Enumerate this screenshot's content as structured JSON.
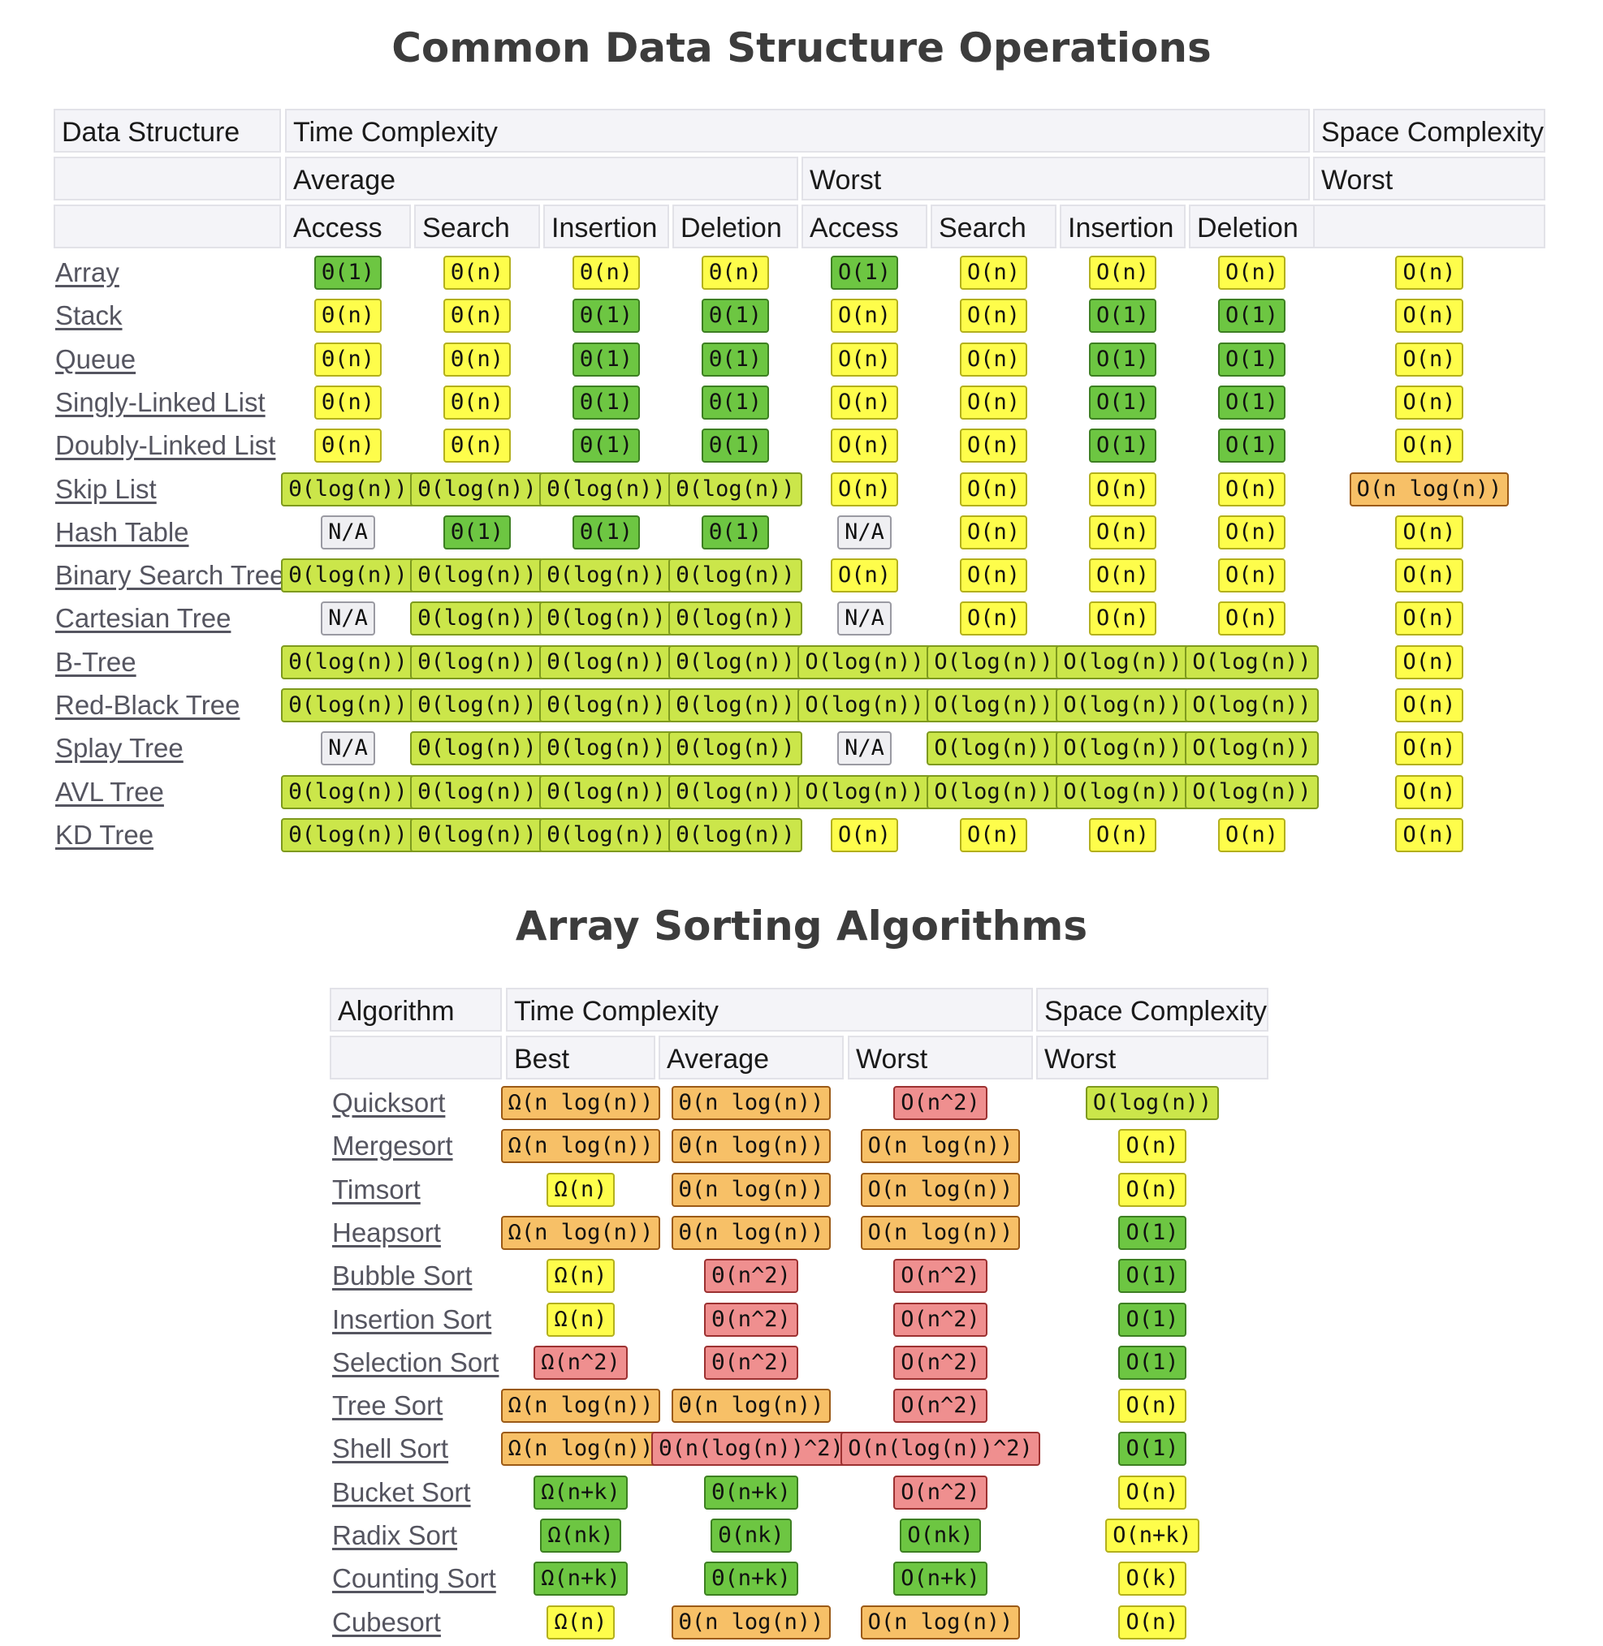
{
  "colors": {
    "green": {
      "bg": "#6dc642",
      "border": "#3d7f22"
    },
    "lightgreen": {
      "bg": "#cbe64a",
      "border": "#7e9a1e"
    },
    "yellow": {
      "bg": "#fefd4b",
      "border": "#b3b01c"
    },
    "orange": {
      "bg": "#f7c067",
      "border": "#9b5a16"
    },
    "red": {
      "bg": "#ef8f8f",
      "border": "#9c3131"
    },
    "gray": {
      "bg": "#efeff2",
      "border": "#9a9aa2"
    }
  },
  "ds_section": {
    "title": "Common Data Structure Operations",
    "header_row1": [
      "Data Structure",
      "Time Complexity",
      "Space Complexity"
    ],
    "header_row2": [
      "",
      "Average",
      "Worst",
      "Worst"
    ],
    "header_row3": [
      "",
      "Access",
      "Search",
      "Insertion",
      "Deletion",
      "Access",
      "Search",
      "Insertion",
      "Deletion",
      ""
    ],
    "rows": [
      {
        "name": "Array",
        "cells": [
          [
            "Θ(1)",
            "green"
          ],
          [
            "Θ(n)",
            "yellow"
          ],
          [
            "Θ(n)",
            "yellow"
          ],
          [
            "Θ(n)",
            "yellow"
          ],
          [
            "O(1)",
            "green"
          ],
          [
            "O(n)",
            "yellow"
          ],
          [
            "O(n)",
            "yellow"
          ],
          [
            "O(n)",
            "yellow"
          ],
          [
            "O(n)",
            "yellow"
          ]
        ]
      },
      {
        "name": "Stack",
        "cells": [
          [
            "Θ(n)",
            "yellow"
          ],
          [
            "Θ(n)",
            "yellow"
          ],
          [
            "Θ(1)",
            "green"
          ],
          [
            "Θ(1)",
            "green"
          ],
          [
            "O(n)",
            "yellow"
          ],
          [
            "O(n)",
            "yellow"
          ],
          [
            "O(1)",
            "green"
          ],
          [
            "O(1)",
            "green"
          ],
          [
            "O(n)",
            "yellow"
          ]
        ]
      },
      {
        "name": "Queue",
        "cells": [
          [
            "Θ(n)",
            "yellow"
          ],
          [
            "Θ(n)",
            "yellow"
          ],
          [
            "Θ(1)",
            "green"
          ],
          [
            "Θ(1)",
            "green"
          ],
          [
            "O(n)",
            "yellow"
          ],
          [
            "O(n)",
            "yellow"
          ],
          [
            "O(1)",
            "green"
          ],
          [
            "O(1)",
            "green"
          ],
          [
            "O(n)",
            "yellow"
          ]
        ]
      },
      {
        "name": "Singly-Linked List",
        "cells": [
          [
            "Θ(n)",
            "yellow"
          ],
          [
            "Θ(n)",
            "yellow"
          ],
          [
            "Θ(1)",
            "green"
          ],
          [
            "Θ(1)",
            "green"
          ],
          [
            "O(n)",
            "yellow"
          ],
          [
            "O(n)",
            "yellow"
          ],
          [
            "O(1)",
            "green"
          ],
          [
            "O(1)",
            "green"
          ],
          [
            "O(n)",
            "yellow"
          ]
        ]
      },
      {
        "name": "Doubly-Linked List",
        "cells": [
          [
            "Θ(n)",
            "yellow"
          ],
          [
            "Θ(n)",
            "yellow"
          ],
          [
            "Θ(1)",
            "green"
          ],
          [
            "Θ(1)",
            "green"
          ],
          [
            "O(n)",
            "yellow"
          ],
          [
            "O(n)",
            "yellow"
          ],
          [
            "O(1)",
            "green"
          ],
          [
            "O(1)",
            "green"
          ],
          [
            "O(n)",
            "yellow"
          ]
        ]
      },
      {
        "name": "Skip List",
        "cells": [
          [
            "Θ(log(n))",
            "lightgreen"
          ],
          [
            "Θ(log(n))",
            "lightgreen"
          ],
          [
            "Θ(log(n))",
            "lightgreen"
          ],
          [
            "Θ(log(n))",
            "lightgreen"
          ],
          [
            "O(n)",
            "yellow"
          ],
          [
            "O(n)",
            "yellow"
          ],
          [
            "O(n)",
            "yellow"
          ],
          [
            "O(n)",
            "yellow"
          ],
          [
            "O(n log(n))",
            "orange"
          ]
        ]
      },
      {
        "name": "Hash Table",
        "cells": [
          [
            "N/A",
            "gray"
          ],
          [
            "Θ(1)",
            "green"
          ],
          [
            "Θ(1)",
            "green"
          ],
          [
            "Θ(1)",
            "green"
          ],
          [
            "N/A",
            "gray"
          ],
          [
            "O(n)",
            "yellow"
          ],
          [
            "O(n)",
            "yellow"
          ],
          [
            "O(n)",
            "yellow"
          ],
          [
            "O(n)",
            "yellow"
          ]
        ]
      },
      {
        "name": "Binary Search Tree",
        "cells": [
          [
            "Θ(log(n))",
            "lightgreen"
          ],
          [
            "Θ(log(n))",
            "lightgreen"
          ],
          [
            "Θ(log(n))",
            "lightgreen"
          ],
          [
            "Θ(log(n))",
            "lightgreen"
          ],
          [
            "O(n)",
            "yellow"
          ],
          [
            "O(n)",
            "yellow"
          ],
          [
            "O(n)",
            "yellow"
          ],
          [
            "O(n)",
            "yellow"
          ],
          [
            "O(n)",
            "yellow"
          ]
        ]
      },
      {
        "name": "Cartesian Tree",
        "cells": [
          [
            "N/A",
            "gray"
          ],
          [
            "Θ(log(n))",
            "lightgreen"
          ],
          [
            "Θ(log(n))",
            "lightgreen"
          ],
          [
            "Θ(log(n))",
            "lightgreen"
          ],
          [
            "N/A",
            "gray"
          ],
          [
            "O(n)",
            "yellow"
          ],
          [
            "O(n)",
            "yellow"
          ],
          [
            "O(n)",
            "yellow"
          ],
          [
            "O(n)",
            "yellow"
          ]
        ]
      },
      {
        "name": "B-Tree",
        "cells": [
          [
            "Θ(log(n))",
            "lightgreen"
          ],
          [
            "Θ(log(n))",
            "lightgreen"
          ],
          [
            "Θ(log(n))",
            "lightgreen"
          ],
          [
            "Θ(log(n))",
            "lightgreen"
          ],
          [
            "O(log(n))",
            "lightgreen"
          ],
          [
            "O(log(n))",
            "lightgreen"
          ],
          [
            "O(log(n))",
            "lightgreen"
          ],
          [
            "O(log(n))",
            "lightgreen"
          ],
          [
            "O(n)",
            "yellow"
          ]
        ]
      },
      {
        "name": "Red-Black Tree",
        "cells": [
          [
            "Θ(log(n))",
            "lightgreen"
          ],
          [
            "Θ(log(n))",
            "lightgreen"
          ],
          [
            "Θ(log(n))",
            "lightgreen"
          ],
          [
            "Θ(log(n))",
            "lightgreen"
          ],
          [
            "O(log(n))",
            "lightgreen"
          ],
          [
            "O(log(n))",
            "lightgreen"
          ],
          [
            "O(log(n))",
            "lightgreen"
          ],
          [
            "O(log(n))",
            "lightgreen"
          ],
          [
            "O(n)",
            "yellow"
          ]
        ]
      },
      {
        "name": "Splay Tree",
        "cells": [
          [
            "N/A",
            "gray"
          ],
          [
            "Θ(log(n))",
            "lightgreen"
          ],
          [
            "Θ(log(n))",
            "lightgreen"
          ],
          [
            "Θ(log(n))",
            "lightgreen"
          ],
          [
            "N/A",
            "gray"
          ],
          [
            "O(log(n))",
            "lightgreen"
          ],
          [
            "O(log(n))",
            "lightgreen"
          ],
          [
            "O(log(n))",
            "lightgreen"
          ],
          [
            "O(n)",
            "yellow"
          ]
        ]
      },
      {
        "name": "AVL Tree",
        "cells": [
          [
            "Θ(log(n))",
            "lightgreen"
          ],
          [
            "Θ(log(n))",
            "lightgreen"
          ],
          [
            "Θ(log(n))",
            "lightgreen"
          ],
          [
            "Θ(log(n))",
            "lightgreen"
          ],
          [
            "O(log(n))",
            "lightgreen"
          ],
          [
            "O(log(n))",
            "lightgreen"
          ],
          [
            "O(log(n))",
            "lightgreen"
          ],
          [
            "O(log(n))",
            "lightgreen"
          ],
          [
            "O(n)",
            "yellow"
          ]
        ]
      },
      {
        "name": "KD Tree",
        "cells": [
          [
            "Θ(log(n))",
            "lightgreen"
          ],
          [
            "Θ(log(n))",
            "lightgreen"
          ],
          [
            "Θ(log(n))",
            "lightgreen"
          ],
          [
            "Θ(log(n))",
            "lightgreen"
          ],
          [
            "O(n)",
            "yellow"
          ],
          [
            "O(n)",
            "yellow"
          ],
          [
            "O(n)",
            "yellow"
          ],
          [
            "O(n)",
            "yellow"
          ],
          [
            "O(n)",
            "yellow"
          ]
        ]
      }
    ]
  },
  "sort_section": {
    "title": "Array Sorting Algorithms",
    "header_row1": [
      "Algorithm",
      "Time Complexity",
      "Space Complexity"
    ],
    "header_row2": [
      "",
      "Best",
      "Average",
      "Worst",
      "Worst"
    ],
    "rows": [
      {
        "name": "Quicksort",
        "cells": [
          [
            "Ω(n log(n))",
            "orange"
          ],
          [
            "Θ(n log(n))",
            "orange"
          ],
          [
            "O(n^2)",
            "red"
          ],
          [
            "O(log(n))",
            "lightgreen"
          ]
        ]
      },
      {
        "name": "Mergesort",
        "cells": [
          [
            "Ω(n log(n))",
            "orange"
          ],
          [
            "Θ(n log(n))",
            "orange"
          ],
          [
            "O(n log(n))",
            "orange"
          ],
          [
            "O(n)",
            "yellow"
          ]
        ]
      },
      {
        "name": "Timsort",
        "cells": [
          [
            "Ω(n)",
            "yellow"
          ],
          [
            "Θ(n log(n))",
            "orange"
          ],
          [
            "O(n log(n))",
            "orange"
          ],
          [
            "O(n)",
            "yellow"
          ]
        ]
      },
      {
        "name": "Heapsort",
        "cells": [
          [
            "Ω(n log(n))",
            "orange"
          ],
          [
            "Θ(n log(n))",
            "orange"
          ],
          [
            "O(n log(n))",
            "orange"
          ],
          [
            "O(1)",
            "green"
          ]
        ]
      },
      {
        "name": "Bubble Sort",
        "cells": [
          [
            "Ω(n)",
            "yellow"
          ],
          [
            "Θ(n^2)",
            "red"
          ],
          [
            "O(n^2)",
            "red"
          ],
          [
            "O(1)",
            "green"
          ]
        ]
      },
      {
        "name": "Insertion Sort",
        "cells": [
          [
            "Ω(n)",
            "yellow"
          ],
          [
            "Θ(n^2)",
            "red"
          ],
          [
            "O(n^2)",
            "red"
          ],
          [
            "O(1)",
            "green"
          ]
        ]
      },
      {
        "name": "Selection Sort",
        "cells": [
          [
            "Ω(n^2)",
            "red"
          ],
          [
            "Θ(n^2)",
            "red"
          ],
          [
            "O(n^2)",
            "red"
          ],
          [
            "O(1)",
            "green"
          ]
        ]
      },
      {
        "name": "Tree Sort",
        "cells": [
          [
            "Ω(n log(n))",
            "orange"
          ],
          [
            "Θ(n log(n))",
            "orange"
          ],
          [
            "O(n^2)",
            "red"
          ],
          [
            "O(n)",
            "yellow"
          ]
        ]
      },
      {
        "name": "Shell Sort",
        "cells": [
          [
            "Ω(n log(n))",
            "orange"
          ],
          [
            "Θ(n(log(n))^2)",
            "red"
          ],
          [
            "O(n(log(n))^2)",
            "red"
          ],
          [
            "O(1)",
            "green"
          ]
        ]
      },
      {
        "name": "Bucket Sort",
        "cells": [
          [
            "Ω(n+k)",
            "green"
          ],
          [
            "Θ(n+k)",
            "green"
          ],
          [
            "O(n^2)",
            "red"
          ],
          [
            "O(n)",
            "yellow"
          ]
        ]
      },
      {
        "name": "Radix Sort",
        "cells": [
          [
            "Ω(nk)",
            "green"
          ],
          [
            "Θ(nk)",
            "green"
          ],
          [
            "O(nk)",
            "green"
          ],
          [
            "O(n+k)",
            "yellow"
          ]
        ]
      },
      {
        "name": "Counting Sort",
        "cells": [
          [
            "Ω(n+k)",
            "green"
          ],
          [
            "Θ(n+k)",
            "green"
          ],
          [
            "O(n+k)",
            "green"
          ],
          [
            "O(k)",
            "yellow"
          ]
        ]
      },
      {
        "name": "Cubesort",
        "cells": [
          [
            "Ω(n)",
            "yellow"
          ],
          [
            "Θ(n log(n))",
            "orange"
          ],
          [
            "O(n log(n))",
            "orange"
          ],
          [
            "O(n)",
            "yellow"
          ]
        ]
      }
    ]
  }
}
